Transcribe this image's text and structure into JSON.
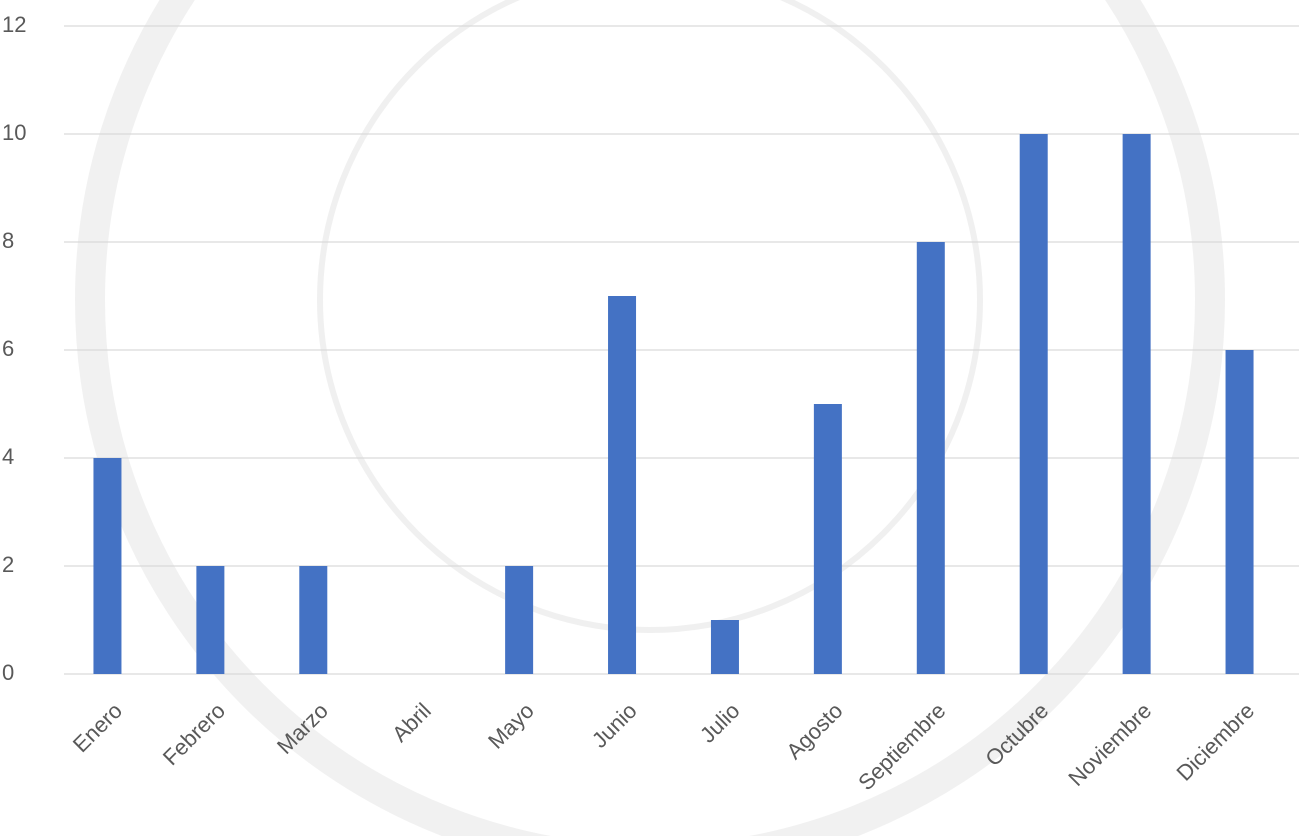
{
  "chart_data": {
    "type": "bar",
    "categories": [
      "Enero",
      "Febrero",
      "Marzo",
      "Abril",
      "Mayo",
      "Junio",
      "Julio",
      "Agosto",
      "Septiembre",
      "Octubre",
      "Noviembre",
      "Diciembre"
    ],
    "values": [
      4,
      2,
      2,
      0,
      2,
      7,
      1,
      5,
      8,
      10,
      10,
      6
    ],
    "color": "#4472c4",
    "ylim": [
      0,
      12
    ],
    "yticks": [
      0,
      2,
      4,
      6,
      8,
      10,
      12
    ],
    "grid": true
  }
}
